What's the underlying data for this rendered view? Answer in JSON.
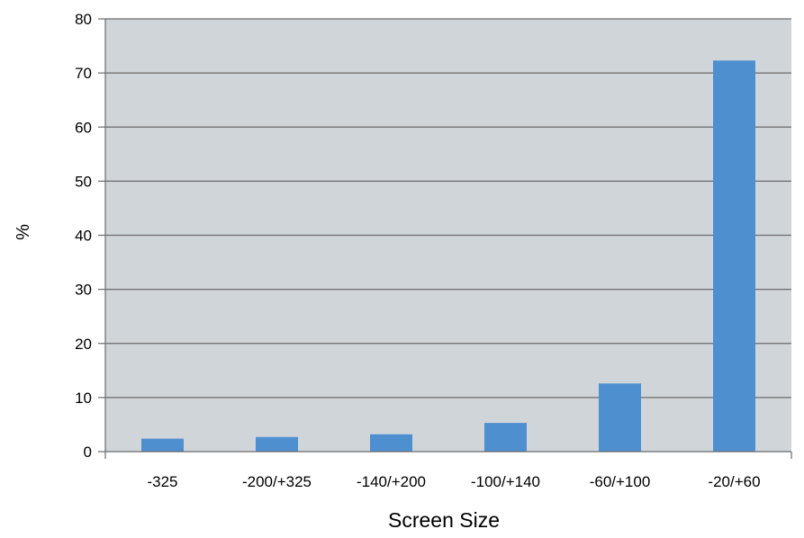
{
  "chart_data": {
    "type": "bar",
    "title": "",
    "xlabel": "Screen Size",
    "ylabel": "%",
    "categories": [
      "-325",
      "-200/+325",
      "-140/+200",
      "-100/+140",
      "-60/+100",
      "-20/+60"
    ],
    "values": [
      2.4,
      2.7,
      3.2,
      5.3,
      12.6,
      72.3
    ],
    "ylim": [
      0,
      80
    ],
    "yticks": [
      0,
      10,
      20,
      30,
      40,
      50,
      60,
      70,
      80
    ],
    "grid": true,
    "legend": "none",
    "colors": {
      "bar": "#4e8fcf",
      "plot_background": "#d0d5da",
      "gridline": "#6b6b6b",
      "axis": "#6b6b6b"
    }
  }
}
